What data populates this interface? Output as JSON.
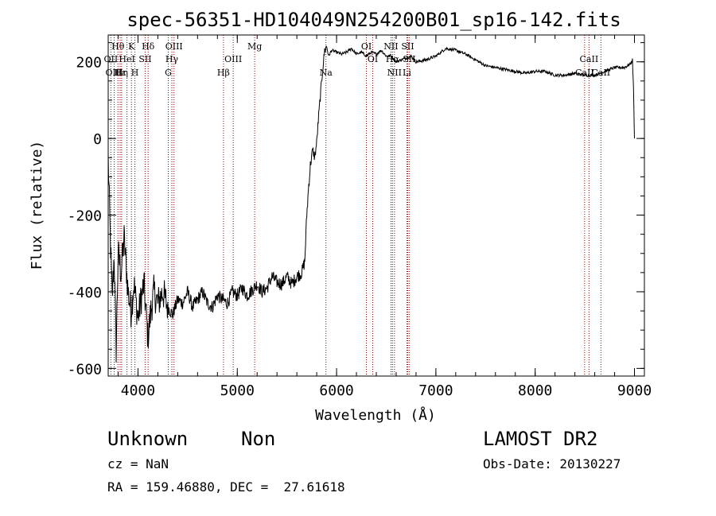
{
  "chart_data": {
    "type": "line",
    "title": "spec-56351-HD104049N254200B01_sp16-142.fits",
    "xlabel": "Wavelength (Å)",
    "ylabel": "Flux (relative)",
    "xlim": [
      3700,
      9100
    ],
    "ylim": [
      -620,
      270
    ],
    "xticks": [
      4000,
      5000,
      6000,
      7000,
      8000,
      9000
    ],
    "yticks": [
      -600,
      -400,
      -200,
      0,
      200
    ],
    "grid": false,
    "series": [
      {
        "x": [
          3700,
          3720,
          3740,
          3760,
          3780,
          3800,
          3830,
          3860,
          3900,
          3930,
          3960,
          4000,
          4030,
          4060,
          4100,
          4130,
          4160,
          4200,
          4250,
          4300,
          4350,
          4400,
          4450,
          4500,
          4550,
          4600,
          4650,
          4700,
          4750,
          4800,
          4850,
          4900,
          4950,
          5000,
          5050,
          5100,
          5150,
          5200,
          5250,
          5300,
          5350,
          5400,
          5450,
          5500,
          5550,
          5600,
          5650,
          5680,
          5700,
          5720,
          5740,
          5760,
          5780,
          5800,
          5820,
          5840,
          5860,
          5880,
          5900,
          5920,
          5950,
          6000,
          6050,
          6100,
          6150,
          6200,
          6250,
          6300,
          6350,
          6400,
          6450,
          6500,
          6550,
          6600,
          6650,
          6700,
          6750,
          6800,
          6900,
          7000,
          7100,
          7200,
          7300,
          7400,
          7500,
          7600,
          7700,
          7800,
          7900,
          8000,
          8100,
          8200,
          8300,
          8400,
          8500,
          8600,
          8700,
          8800,
          8900,
          8960,
          8980,
          8990,
          9000
        ],
        "values": [
          -50,
          -250,
          -420,
          -300,
          -550,
          -300,
          -350,
          -260,
          -400,
          -450,
          -380,
          -470,
          -420,
          -380,
          -520,
          -450,
          -400,
          -430,
          -400,
          -440,
          -460,
          -420,
          -430,
          -400,
          -440,
          -420,
          -400,
          -430,
          -440,
          -410,
          -420,
          -430,
          -400,
          -410,
          -390,
          -410,
          -395,
          -380,
          -400,
          -390,
          -360,
          -375,
          -380,
          -360,
          -380,
          -360,
          -350,
          -320,
          -200,
          -120,
          -60,
          -30,
          -50,
          -10,
          60,
          120,
          180,
          230,
          240,
          215,
          230,
          225,
          220,
          225,
          235,
          220,
          225,
          215,
          225,
          220,
          230,
          215,
          215,
          200,
          205,
          210,
          215,
          200,
          205,
          215,
          235,
          230,
          220,
          205,
          190,
          185,
          180,
          175,
          170,
          175,
          175,
          165,
          165,
          170,
          165,
          165,
          175,
          185,
          185,
          195,
          205,
          130,
          0
        ]
      }
    ],
    "line_markers": [
      {
        "label": "Hθ",
        "x": 3798,
        "row": 1
      },
      {
        "label": "OII",
        "x": 3727,
        "row": 2
      },
      {
        "label": "OIII",
        "x": 3760,
        "row": 3
      },
      {
        "label": "Hε",
        "x": 3820,
        "row": 3
      },
      {
        "label": "Hη",
        "x": 3835,
        "row": 3
      },
      {
        "label": "HeI",
        "x": 3889,
        "row": 2
      },
      {
        "label": "K",
        "x": 3934,
        "row": 1
      },
      {
        "label": "H",
        "x": 3969,
        "row": 3
      },
      {
        "label": "SII",
        "x": 4072,
        "row": 2
      },
      {
        "label": "Hδ",
        "x": 4102,
        "row": 1
      },
      {
        "label": "OIII",
        "x": 4363,
        "row": 1
      },
      {
        "label": "Hγ",
        "x": 4341,
        "row": 2
      },
      {
        "label": "G",
        "x": 4305,
        "row": 3
      },
      {
        "label": "OIII",
        "x": 4959,
        "row": 2
      },
      {
        "label": "Hβ",
        "x": 4861,
        "row": 3
      },
      {
        "label": "Mg",
        "x": 5175,
        "row": 1
      },
      {
        "label": "Na",
        "x": 5893,
        "row": 3
      },
      {
        "label": "OI",
        "x": 6300,
        "row": 1
      },
      {
        "label": "OI",
        "x": 6364,
        "row": 2
      },
      {
        "label": "NII",
        "x": 6548,
        "row": 1
      },
      {
        "label": "Hα",
        "x": 6563,
        "row": 2
      },
      {
        "label": "NII",
        "x": 6583,
        "row": 3
      },
      {
        "label": "SII",
        "x": 6716,
        "row": 1
      },
      {
        "label": "SII",
        "x": 6731,
        "row": 2
      },
      {
        "label": "Li",
        "x": 6708,
        "row": 3
      },
      {
        "label": "CaII",
        "x": 8542,
        "row": 2
      },
      {
        "label": "CaII",
        "x": 8498,
        "row": 3
      },
      {
        "label": "CaII",
        "x": 8662,
        "row": 3
      }
    ]
  },
  "footer": {
    "object_class": "Unknown",
    "object_subclass": "Non",
    "survey": "LAMOST DR2",
    "redshift": "cz = NaN",
    "obs_date": "Obs-Date: 20130227",
    "coords": "RA = 159.46880, DEC =  27.61618"
  },
  "colors": {
    "spectrum": "#000000",
    "line_marker": "#8b0000",
    "axes": "#000000"
  }
}
